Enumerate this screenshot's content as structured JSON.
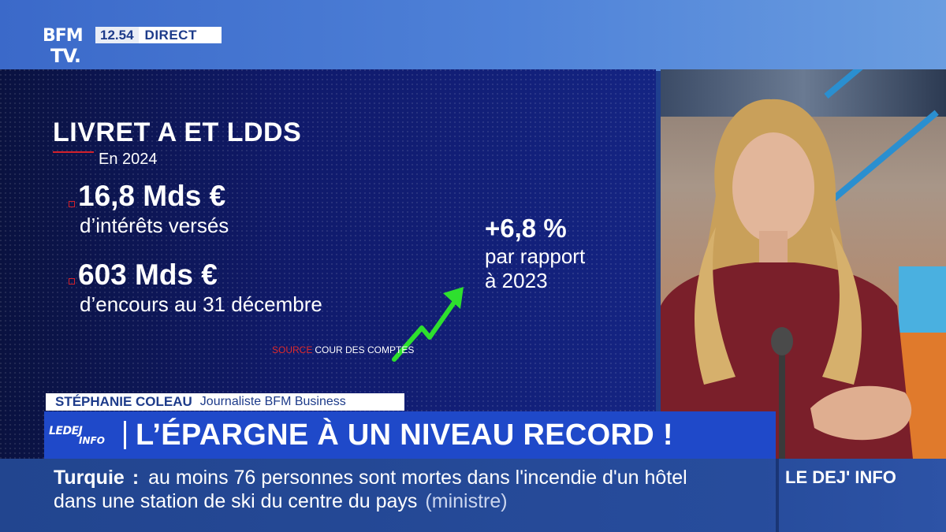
{
  "header": {
    "channel_logo_line1": "BFM",
    "channel_logo_line2": "TV.",
    "time": "12.54",
    "live_label": "DIRECT"
  },
  "infographic": {
    "title": "LIVRET A ET LDDS",
    "subtitle": "En 2024",
    "stats": [
      {
        "value": "16,8 Mds €",
        "label": "d’intérêts versés"
      },
      {
        "value": "603 Mds €",
        "label": "d’encours au 31 décembre"
      }
    ],
    "change_value": "+6,8 %",
    "change_line1": "par rapport",
    "change_line2": "à 2023",
    "source_key": "SOURCE",
    "source_value": "COUR DES COMPTES",
    "accent_color": "#d3212b",
    "arrow_color": "#2ee02e",
    "arrow_icon": "trend-up-arrow"
  },
  "lower_third": {
    "name": "STÉPHANIE COLEAU",
    "role": "Journaliste BFM Business",
    "show_logo_line1": "LEDEJ",
    "show_logo_line2": "INFO",
    "headline": "L’ÉPARGNE À UN NIVEAU RECORD !"
  },
  "ticker": {
    "topic": "Turquie",
    "separator": ":",
    "line1": "au moins 76 personnes sont mortes dans l'incendie d'un hôtel",
    "line2": "dans une station de ski du centre du pays",
    "source": "(ministre)",
    "brand": "LE DEJ' INFO"
  }
}
